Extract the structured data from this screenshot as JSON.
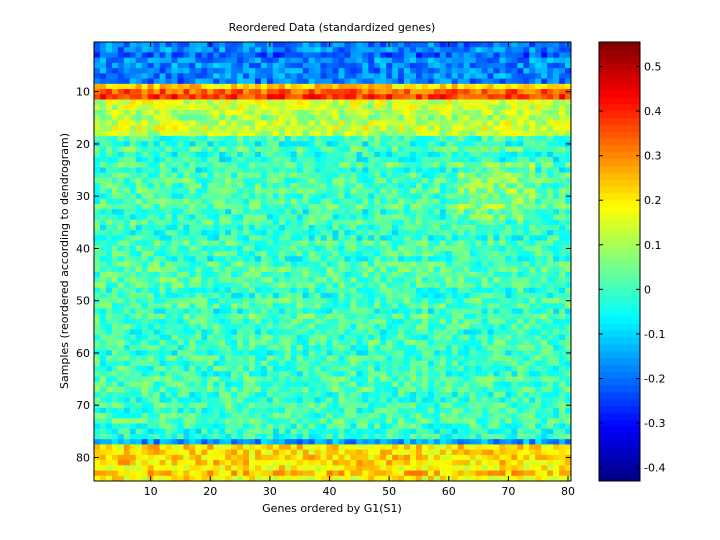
{
  "chart_data": {
    "type": "heatmap",
    "title": "Reordered Data (standardized genes)",
    "xlabel": "Genes ordered by G1(S1)",
    "ylabel": "Samples (reordered according to dendrogram)",
    "n_cols": 80,
    "n_rows": 84,
    "xlim": [
      0.5,
      80.5
    ],
    "ylim": [
      0.5,
      84.5
    ],
    "y_reversed": true,
    "xticks": [
      10,
      20,
      30,
      40,
      50,
      60,
      70,
      80
    ],
    "yticks": [
      10,
      20,
      30,
      40,
      50,
      60,
      70,
      80
    ],
    "colormap": "jet",
    "clim": [
      -0.43,
      0.555
    ],
    "colorbar": {
      "ticks": [
        -0.4,
        -0.3,
        -0.2,
        -0.1,
        0,
        0.1,
        0.2,
        0.3,
        0.4,
        0.5
      ],
      "tick_labels": [
        "-0.4",
        "-0.3",
        "-0.2",
        "-0.1",
        "0",
        "0.1",
        "0.2",
        "0.3",
        "0.4",
        "0.5"
      ],
      "position": "right"
    },
    "row_band_means": [
      {
        "rows": [
          1,
          8
        ],
        "mean": -0.2
      },
      {
        "rows": [
          9,
          9
        ],
        "mean": 0.2
      },
      {
        "rows": [
          10,
          11
        ],
        "mean": 0.36
      },
      {
        "rows": [
          12,
          18
        ],
        "mean": 0.12
      },
      {
        "rows": [
          19,
          76
        ],
        "mean": 0.0
      },
      {
        "rows": [
          77,
          77
        ],
        "mean": -0.15
      },
      {
        "rows": [
          78,
          84
        ],
        "mean": 0.22
      }
    ]
  }
}
